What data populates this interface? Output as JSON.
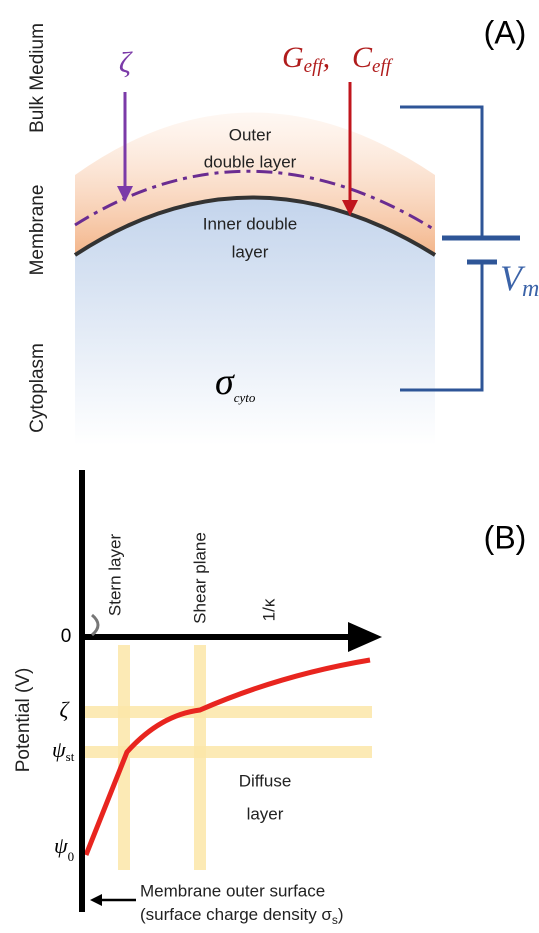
{
  "panel_a": {
    "label": "(A)",
    "regions": [
      "Bulk Medium",
      "Membrane",
      "Cytoplasm"
    ],
    "zeta": "ζ",
    "g_eff": {
      "symbol": "G",
      "subscript": "eff"
    },
    "separator": ",",
    "c_eff": {
      "symbol": "C",
      "subscript": "eff"
    },
    "outer_layer": [
      "Outer",
      "double layer"
    ],
    "inner_layer": [
      "Inner double",
      "layer"
    ],
    "sigma": {
      "symbol": "σ",
      "subscript": "cyto"
    },
    "voltage": {
      "symbol": "V",
      "subscript": "m"
    }
  },
  "panel_b": {
    "label": "(B)",
    "axis_label": "Potential (V)",
    "ticks": {
      "zero": "0",
      "zeta": "ζ",
      "psi_st": {
        "symbol": "ψ",
        "subscript": "st"
      },
      "psi_0": {
        "symbol": "ψ",
        "subscript": "0"
      }
    },
    "stern_layer": "Stern layer",
    "shear_plane": "Shear plane",
    "debye_length": "1/κ",
    "diffuse_layer": [
      "Diffuse",
      "layer"
    ],
    "surface_note": {
      "line1": "Membrane outer surface",
      "line2_start": "(surface charge density σ",
      "line2_sub": "s",
      "line2_end": ")"
    }
  }
}
